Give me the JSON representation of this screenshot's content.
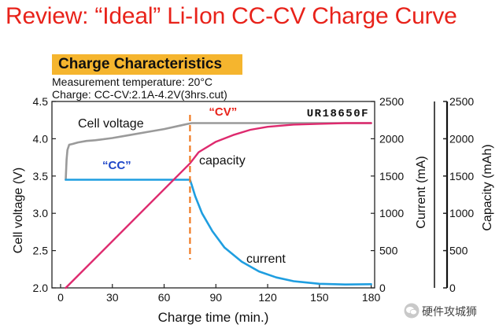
{
  "page": {
    "title": "Review:  “Ideal” Li-Ion CC-CV Charge Curve",
    "section_header": "Charge Characteristics",
    "measurement_temperature": "Measurement temperature: 20°C",
    "charge_condition": "Charge: CC-CV:2.1A-4.2V(3hrs.cut)",
    "watermark_text": "硬件攻城狮",
    "watermark_icon": "wechat-icon"
  },
  "colors": {
    "title": "#e8221a",
    "header_bg": "#f5b52e",
    "voltage": "#9a9a9a",
    "current": "#1f9ee0",
    "capacity": "#de2a6e",
    "cv_marker": "#f07a22",
    "cc_label": "#1e46c8"
  },
  "chart_data": {
    "type": "line",
    "model_label": "UR18650F",
    "xlabel": "Charge time (min.)",
    "x_ticks": [
      0,
      30,
      60,
      90,
      120,
      150,
      180
    ],
    "xlim": [
      -5,
      182
    ],
    "axes": {
      "voltage": {
        "label": "Cell voltage (V)",
        "ylim": [
          2.0,
          4.5
        ],
        "ticks": [
          "2.0",
          "2.5",
          "3.0",
          "3.5",
          "4.0",
          "4.5"
        ]
      },
      "current": {
        "label": "Current (mA)",
        "ylim": [
          0,
          2500
        ],
        "ticks": [
          "0",
          "500",
          "1000",
          "1500",
          "2000",
          "2500"
        ]
      },
      "capacity": {
        "label": "Capacity (mAh)",
        "ylim": [
          0,
          2500
        ],
        "ticks": [
          "0",
          "500",
          "1000",
          "1500",
          "2000",
          "2500"
        ]
      }
    },
    "series": [
      {
        "name": "Cell voltage",
        "axis": "voltage",
        "x": [
          3,
          3.5,
          4,
          5,
          7,
          10,
          15,
          20,
          30,
          40,
          50,
          60,
          70,
          74,
          76,
          80,
          100,
          120,
          150,
          180
        ],
        "y": [
          3.45,
          3.72,
          3.85,
          3.92,
          3.93,
          3.95,
          3.97,
          3.98,
          4.01,
          4.05,
          4.09,
          4.13,
          4.18,
          4.2,
          4.21,
          4.21,
          4.21,
          4.21,
          4.21,
          4.21
        ]
      },
      {
        "name": "current",
        "axis": "current",
        "x": [
          3,
          75,
          76,
          78,
          82,
          88,
          95,
          105,
          115,
          125,
          135,
          150,
          165,
          180
        ],
        "y": [
          1450,
          1450,
          1380,
          1230,
          1000,
          760,
          540,
          350,
          220,
          140,
          90,
          55,
          45,
          50
        ]
      },
      {
        "name": "capacity",
        "axis": "capacity",
        "x": [
          3,
          75,
          80,
          90,
          100,
          110,
          120,
          135,
          150,
          165,
          180
        ],
        "y": [
          0,
          1670,
          1820,
          1960,
          2050,
          2120,
          2160,
          2190,
          2200,
          2210,
          2210
        ]
      }
    ],
    "annotations": [
      {
        "text": "“CV”",
        "x": 75
      },
      {
        "text": "“CC”"
      }
    ],
    "cv_boundary_x": 75,
    "grid": false
  }
}
